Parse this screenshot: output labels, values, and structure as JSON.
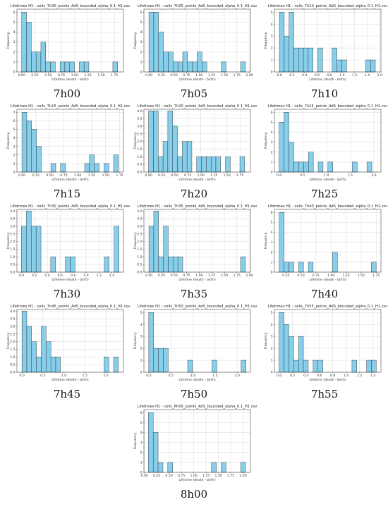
{
  "chart_data": [
    {
      "type": "bar",
      "title": "Lifetimes H1 - cells_7h00_points_AdS_bounded_alpha_0.1_H1.csv",
      "caption": "7h00",
      "xlabel": "Lifetime (death - birth)",
      "ylabel": "Frequency",
      "xlim": [
        -0.09,
        1.92
      ],
      "ylim": [
        0,
        6.3
      ],
      "xticks": [
        0.0,
        0.25,
        0.5,
        0.75,
        1.0,
        1.25,
        1.5,
        1.75
      ],
      "xtick_labels": [
        "0.00",
        "0.25",
        "0.50",
        "0.75",
        "1.00",
        "1.25",
        "1.50",
        "1.75"
      ],
      "yticks": [
        0,
        1,
        2,
        3,
        4,
        5,
        6
      ],
      "ytick_labels": [
        "0",
        "1",
        "2",
        "3",
        "4",
        "5",
        "6"
      ],
      "bin_start": 0.0,
      "bin_width": 0.0905,
      "values": [
        6,
        5,
        2,
        2,
        3,
        1,
        1,
        0,
        1,
        1,
        1,
        0,
        1,
        1,
        0,
        0,
        0,
        0,
        0,
        1
      ]
    },
    {
      "type": "bar",
      "title": "Lifetimes H1 - cells_7h05_points_AdS_bounded_alpha_0.1_H1.csv",
      "caption": "7h05",
      "xlabel": "Lifetime (death - birth)",
      "ylabel": "Frequency",
      "xlim": [
        -0.1,
        2.02
      ],
      "ylim": [
        0,
        6.3
      ],
      "xticks": [
        0.0,
        0.25,
        0.5,
        0.75,
        1.0,
        1.25,
        1.5,
        1.75,
        2.0
      ],
      "xtick_labels": [
        "0.00",
        "0.25",
        "0.50",
        "0.75",
        "1.00",
        "1.25",
        "1.50",
        "1.75",
        "2.00"
      ],
      "yticks": [
        0,
        1,
        2,
        3,
        4,
        5,
        6
      ],
      "ytick_labels": [
        "0",
        "1",
        "2",
        "3",
        "4",
        "5",
        "6"
      ],
      "bin_start": 0.0,
      "bin_width": 0.096,
      "values": [
        6,
        6,
        4,
        2,
        2,
        1,
        1,
        2,
        1,
        1,
        2,
        1,
        0,
        0,
        0,
        1,
        0,
        0,
        0,
        1
      ]
    },
    {
      "type": "bar",
      "title": "Lifetimes H1 - cells_7h10_points_AdS_bounded_alpha_0.1_H1.csv",
      "caption": "7h10",
      "xlabel": "Lifetime (death - birth)",
      "ylabel": "Frequency",
      "xlim": [
        -0.08,
        1.62
      ],
      "ylim": [
        0,
        5.25
      ],
      "xticks": [
        0.0,
        0.2,
        0.4,
        0.6,
        0.8,
        1.0,
        1.2,
        1.4,
        1.6
      ],
      "xtick_labels": [
        "0.0",
        "0.2",
        "0.4",
        "0.6",
        "0.8",
        "1.0",
        "1.2",
        "1.4",
        "1.6"
      ],
      "yticks": [
        0,
        1,
        2,
        3,
        4,
        5
      ],
      "ytick_labels": [
        "0",
        "1",
        "2",
        "3",
        "4",
        "5"
      ],
      "bin_start": 0.0,
      "bin_width": 0.0765,
      "values": [
        5,
        3,
        5,
        2,
        2,
        2,
        2,
        0,
        2,
        0,
        0,
        2,
        1,
        1,
        0,
        0,
        0,
        0,
        1,
        1
      ]
    },
    {
      "type": "bar",
      "title": "Lifetimes H1 - cells_7h15_points_AdS_bounded_alpha_0.1_H1.csv",
      "caption": "7h15",
      "xlabel": "Lifetime (death - birth)",
      "ylabel": "Frequency",
      "xlim": [
        -0.09,
        1.82
      ],
      "ylim": [
        0,
        7.35
      ],
      "xticks": [
        0.0,
        0.25,
        0.5,
        0.75,
        1.0,
        1.25,
        1.5,
        1.75
      ],
      "xtick_labels": [
        "0.00",
        "0.25",
        "0.50",
        "0.75",
        "1.00",
        "1.25",
        "1.50",
        "1.75"
      ],
      "yticks": [
        0,
        1,
        2,
        3,
        4,
        5,
        6,
        7
      ],
      "ytick_labels": [
        "0",
        "1",
        "2",
        "3",
        "4",
        "5",
        "6",
        "7"
      ],
      "bin_start": 0.0,
      "bin_width": 0.0865,
      "values": [
        7,
        6,
        5,
        3,
        0,
        0,
        1,
        0,
        1,
        0,
        0,
        0,
        0,
        1,
        2,
        1,
        0,
        1,
        0,
        2
      ]
    },
    {
      "type": "bar",
      "title": "Lifetimes H1 - cells_7h20_points_AdS_bounded_alpha_0.1_H1.csv",
      "caption": "7h20",
      "xlabel": "Lifetime (death - birth)",
      "ylabel": "Frequency",
      "xlim": [
        -0.09,
        1.95
      ],
      "ylim": [
        0,
        4.1
      ],
      "xticks": [
        0.0,
        0.25,
        0.5,
        0.75,
        1.0,
        1.25,
        1.5,
        1.75
      ],
      "xtick_labels": [
        "0.00",
        "0.25",
        "0.50",
        "0.75",
        "1.00",
        "1.25",
        "1.50",
        "1.75"
      ],
      "yticks": [
        0,
        0.5,
        1,
        1.5,
        2,
        2.5,
        3,
        3.5,
        4
      ],
      "ytick_labels": [
        "0.0",
        "0.5",
        "1.0",
        "1.5",
        "2.0",
        "2.5",
        "3.0",
        "3.5",
        "4.0"
      ],
      "bin_start": 0.0,
      "bin_width": 0.092,
      "values": [
        4,
        4,
        1,
        2,
        4,
        3,
        1,
        2,
        2,
        0,
        1,
        1,
        1,
        1,
        1,
        0,
        1,
        0,
        0,
        1
      ]
    },
    {
      "type": "bar",
      "title": "Lifetimes H1 - cells_7h25_points_AdS_bounded_alpha_0.1_H1.csv",
      "caption": "7h25",
      "xlabel": "Lifetime (death - birth)",
      "ylabel": "Frequency",
      "xlim": [
        -0.1,
        2.15
      ],
      "ylim": [
        0,
        6.3
      ],
      "xticks": [
        0.0,
        0.5,
        1.0,
        1.5,
        2.0
      ],
      "xtick_labels": [
        "0.0",
        "0.5",
        "1.0",
        "1.5",
        "2.0"
      ],
      "yticks": [
        0,
        1,
        2,
        3,
        4,
        5,
        6
      ],
      "ytick_labels": [
        "0",
        "1",
        "2",
        "3",
        "4",
        "5",
        "6"
      ],
      "bin_start": 0.0,
      "bin_width": 0.103,
      "values": [
        5,
        6,
        3,
        1,
        1,
        1,
        2,
        0,
        1,
        0,
        1,
        0,
        0,
        0,
        0,
        1,
        0,
        0,
        1,
        0
      ]
    },
    {
      "type": "bar",
      "title": "Lifetimes H1 - cells_7h30_points_AdS_bounded_alpha_0.1_H1.csv",
      "caption": "7h30",
      "xlabel": "Lifetime (death - birth)",
      "ylabel": "Frequency",
      "xlim": [
        -0.07,
        1.58
      ],
      "ylim": [
        0,
        4.1
      ],
      "xticks": [
        0.0,
        0.2,
        0.4,
        0.6,
        0.8,
        1.0,
        1.2,
        1.4
      ],
      "xtick_labels": [
        "0.0",
        "0.2",
        "0.4",
        "0.6",
        "0.8",
        "1.0",
        "1.2",
        "1.4"
      ],
      "yticks": [
        0,
        0.5,
        1,
        1.5,
        2,
        2.5,
        3,
        3.5,
        4
      ],
      "ytick_labels": [
        "0.0",
        "0.5",
        "1.0",
        "1.5",
        "2.0",
        "2.5",
        "3.0",
        "3.5",
        "4.0"
      ],
      "bin_start": 0.0,
      "bin_width": 0.0755,
      "values": [
        3,
        4,
        3,
        3,
        0,
        0,
        1,
        0,
        0,
        1,
        1,
        0,
        0,
        0,
        0,
        0,
        0,
        1,
        0,
        3
      ]
    },
    {
      "type": "bar",
      "title": "Lifetimes H1 - cells_7h35_points_AdS_bounded_alpha_0.1_H1.csv",
      "caption": "7h35",
      "xlabel": "Lifetime (death - birth)",
      "ylabel": "Frequency",
      "xlim": [
        -0.1,
        2.02
      ],
      "ylim": [
        0,
        4.1
      ],
      "xticks": [
        0.0,
        0.25,
        0.5,
        0.75,
        1.0,
        1.25,
        1.5,
        1.75,
        2.0
      ],
      "xtick_labels": [
        "0.00",
        "0.25",
        "0.50",
        "0.75",
        "1.00",
        "1.25",
        "1.50",
        "1.75",
        "2.00"
      ],
      "yticks": [
        0,
        0.5,
        1,
        1.5,
        2,
        2.5,
        3,
        3.5,
        4
      ],
      "ytick_labels": [
        "0.0",
        "0.5",
        "1.0",
        "1.5",
        "2.0",
        "2.5",
        "3.0",
        "3.5",
        "4.0"
      ],
      "bin_start": 0.0,
      "bin_width": 0.096,
      "values": [
        3,
        4,
        1,
        3,
        1,
        1,
        1,
        0,
        0,
        0,
        0,
        0,
        0,
        0,
        0,
        0,
        0,
        0,
        0,
        1
      ]
    },
    {
      "type": "bar",
      "title": "Lifetimes H1 - cells_7h40_points_AdS_bounded_alpha_0.1_H1.csv",
      "caption": "7h40",
      "xlabel": "Lifetime (death - birth)",
      "ylabel": "Frequency",
      "xlim": [
        0.06,
        1.83
      ],
      "ylim": [
        0,
        6.3
      ],
      "xticks": [
        0.25,
        0.5,
        0.75,
        1.0,
        1.25,
        1.5,
        1.75
      ],
      "xtick_labels": [
        "0.25",
        "0.50",
        "0.75",
        "1.00",
        "1.25",
        "1.50",
        "1.75"
      ],
      "yticks": [
        0,
        1,
        2,
        3,
        4,
        5,
        6
      ],
      "ytick_labels": [
        "0",
        "1",
        "2",
        "3",
        "4",
        "5",
        "6"
      ],
      "bin_start": 0.14,
      "bin_width": 0.0805,
      "values": [
        6,
        1,
        1,
        0,
        1,
        0,
        1,
        0,
        0,
        0,
        0,
        2,
        0,
        0,
        0,
        0,
        0,
        0,
        0,
        1
      ]
    },
    {
      "type": "bar",
      "title": "Lifetimes H1 - cells_7h45_points_AdS_bounded_alpha_0.1_H1.csv",
      "caption": "7h45",
      "xlabel": "Lifetime (death - birth)",
      "ylabel": "Frequency",
      "xlim": [
        -0.12,
        2.42
      ],
      "ylim": [
        0,
        4.1
      ],
      "xticks": [
        0.0,
        0.5,
        1.0,
        1.5,
        2.0
      ],
      "xtick_labels": [
        "0.0",
        "0.5",
        "1.0",
        "1.5",
        "2.0"
      ],
      "yticks": [
        0,
        0.5,
        1,
        1.5,
        2,
        2.5,
        3,
        3.5,
        4
      ],
      "ytick_labels": [
        "0.0",
        "0.5",
        "1.0",
        "1.5",
        "2.0",
        "2.5",
        "3.0",
        "3.5",
        "4.0"
      ],
      "bin_start": 0.0,
      "bin_width": 0.115,
      "values": [
        4,
        3,
        2,
        1,
        3,
        2,
        1,
        1,
        0,
        0,
        0,
        0,
        0,
        0,
        0,
        0,
        0,
        1,
        0,
        1
      ]
    },
    {
      "type": "bar",
      "title": "Lifetimes H1 - cells_7h50_points_AdS_bounded_alpha_0.1_H1.csv",
      "caption": "7h50",
      "xlabel": "Lifetime (death - birth)",
      "ylabel": "Frequency",
      "xlim": [
        -0.11,
        2.3
      ],
      "ylim": [
        0,
        5.25
      ],
      "xticks": [
        0.0,
        0.5,
        1.0,
        1.5,
        2.0
      ],
      "xtick_labels": [
        "0.0",
        "0.5",
        "1.0",
        "1.5",
        "2.0"
      ],
      "yticks": [
        0,
        1,
        2,
        3,
        4,
        5
      ],
      "ytick_labels": [
        "0",
        "1",
        "2",
        "3",
        "4",
        "5"
      ],
      "bin_start": 0.0,
      "bin_width": 0.11,
      "values": [
        5,
        2,
        2,
        2,
        0,
        0,
        0,
        0,
        1,
        0,
        0,
        0,
        0,
        1,
        0,
        0,
        0,
        0,
        0,
        1
      ]
    },
    {
      "type": "bar",
      "title": "Lifetimes H1 - cells_7h55_points_AdS_bounded_alpha_0.1_H1.csv",
      "caption": "7h55",
      "xlabel": "Lifetime (death - birth)",
      "ylabel": "Frequency",
      "xlim": [
        -0.07,
        1.52
      ],
      "ylim": [
        0,
        5.25
      ],
      "xticks": [
        0.0,
        0.2,
        0.4,
        0.6,
        0.8,
        1.0,
        1.2,
        1.4
      ],
      "xtick_labels": [
        "0.0",
        "0.2",
        "0.4",
        "0.6",
        "0.8",
        "1.0",
        "1.2",
        "1.4"
      ],
      "yticks": [
        0,
        1,
        2,
        3,
        4,
        5
      ],
      "ytick_labels": [
        "0",
        "1",
        "2",
        "3",
        "4",
        "5"
      ],
      "bin_start": 0.0,
      "bin_width": 0.0725,
      "values": [
        5,
        4,
        3,
        1,
        3,
        1,
        0,
        1,
        1,
        0,
        0,
        0,
        0,
        0,
        0,
        1,
        0,
        0,
        1,
        1
      ]
    },
    {
      "type": "bar",
      "title": "Lifetimes H1 - cells_8h00_points_AdS_bounded_alpha_0.1_H1.csv",
      "caption": "8h00",
      "xlabel": "Lifetime (death - birth)",
      "ylabel": "Frequency",
      "xlim": [
        -0.01,
        2.15
      ],
      "ylim": [
        0,
        6.3
      ],
      "xticks": [
        0.0,
        0.25,
        0.5,
        0.75,
        1.0,
        1.25,
        1.5,
        1.75,
        2.0
      ],
      "xtick_labels": [
        "0.00",
        "0.25",
        "0.50",
        "0.75",
        "1.00",
        "1.25",
        "1.50",
        "1.75",
        "2.00"
      ],
      "yticks": [
        0,
        1,
        2,
        3,
        4,
        5,
        6
      ],
      "ytick_labels": [
        "0",
        "1",
        "2",
        "3",
        "4",
        "5",
        "6"
      ],
      "bin_start": 0.08,
      "bin_width": 0.0985,
      "values": [
        6,
        4,
        1,
        0,
        1,
        0,
        0,
        0,
        0,
        0,
        0,
        0,
        0,
        1,
        0,
        1,
        0,
        0,
        0,
        1
      ]
    }
  ],
  "colors": {
    "bar_fill": "#87ceeb",
    "bar_edge": "#1f1f1f",
    "grid": "#d9d9d9",
    "axis": "#222222"
  }
}
